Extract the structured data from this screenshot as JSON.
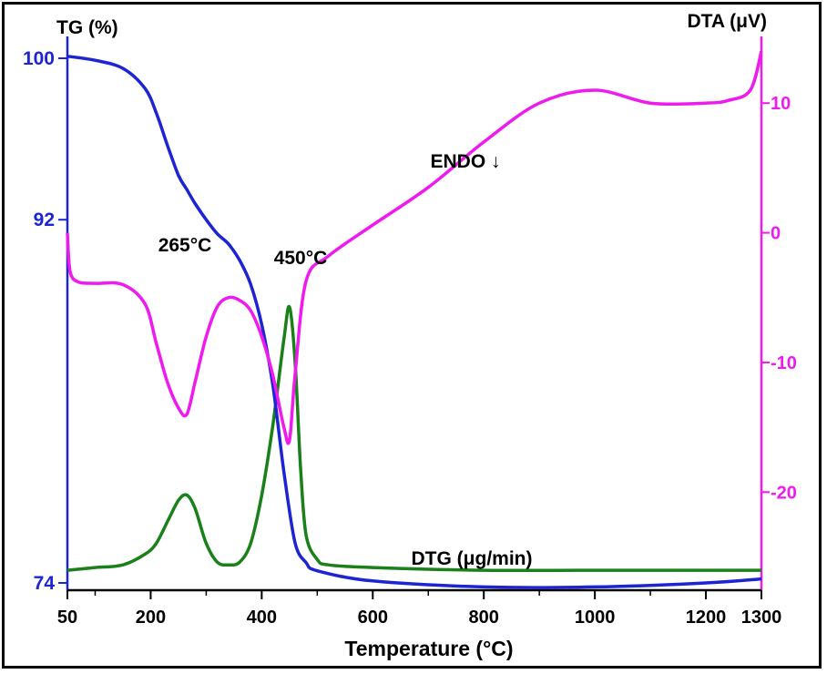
{
  "chart_data": {
    "type": "line",
    "title": "",
    "xlabel": "Temperature (°C)",
    "xlim": [
      50,
      1300
    ],
    "xticks": [
      50,
      200,
      400,
      600,
      800,
      1000,
      1200,
      1300
    ],
    "left_axis_title": "TG (%)",
    "left_ticks": [
      100,
      92,
      74
    ],
    "right_axis_title": "DTA (μV)",
    "right_ticks": [
      10,
      0,
      -10,
      -20
    ],
    "annotations": [
      {
        "text": "265°C",
        "x": 265,
        "y": -14
      },
      {
        "text": "450°C",
        "x": 450,
        "y": -16
      },
      {
        "text": "ENDO ↓",
        "x": 1000,
        "y": -3
      },
      {
        "text": "DTG (μg/min)",
        "x": 680,
        "y": 0.7
      }
    ],
    "series": [
      {
        "name": "TG",
        "axis": "left",
        "color": "#1d24d2",
        "ylim": [
          74,
          100
        ],
        "x": [
          50,
          100,
          150,
          190,
          210,
          230,
          250,
          265,
          280,
          300,
          320,
          340,
          360,
          380,
          400,
          420,
          440,
          460,
          480,
          500,
          600,
          800,
          1000,
          1200,
          1300
        ],
        "y": [
          100.1,
          99.9,
          99.5,
          98.5,
          97.3,
          95.7,
          94.2,
          93.5,
          92.8,
          92.0,
          91.3,
          90.8,
          90.0,
          88.8,
          86.8,
          83.8,
          79.5,
          76.0,
          75.0,
          74.6,
          74.1,
          73.8,
          73.8,
          74.0,
          74.2
        ]
      },
      {
        "name": "DTA",
        "axis": "right",
        "color": "#ee1aee",
        "ylim": [
          -27,
          15
        ],
        "x": [
          50,
          55,
          70,
          100,
          150,
          190,
          210,
          230,
          250,
          265,
          280,
          300,
          320,
          340,
          360,
          380,
          400,
          420,
          440,
          450,
          460,
          480,
          520,
          600,
          700,
          800,
          900,
          1000,
          1100,
          1200,
          1240,
          1280,
          1300
        ],
        "y": [
          0,
          -3,
          -3.8,
          -3.9,
          -4,
          -5.5,
          -8.5,
          -11.5,
          -13.5,
          -14,
          -11.5,
          -8,
          -5.7,
          -5,
          -5.2,
          -6,
          -8,
          -11,
          -15,
          -16,
          -11,
          -3.7,
          -1.8,
          0.6,
          3.5,
          7,
          10,
          11,
          10,
          10,
          10.2,
          11,
          14
        ]
      },
      {
        "name": "DTG (μg/min)",
        "axis": "dtg",
        "color": "#1a801a",
        "ylim": [
          0,
          10
        ],
        "x": [
          50,
          100,
          150,
          190,
          210,
          230,
          250,
          265,
          280,
          300,
          320,
          340,
          360,
          380,
          400,
          420,
          440,
          450,
          460,
          470,
          480,
          500,
          520,
          600,
          800,
          1000,
          1200,
          1300
        ],
        "y": [
          0.2,
          0.3,
          0.4,
          0.8,
          1.2,
          2.0,
          2.8,
          3.0,
          2.5,
          1.2,
          0.5,
          0.4,
          0.5,
          1.2,
          3.0,
          5.6,
          8.8,
          10.0,
          8.0,
          4.0,
          1.5,
          0.6,
          0.4,
          0.3,
          0.2,
          0.2,
          0.2,
          0.2
        ]
      }
    ]
  }
}
